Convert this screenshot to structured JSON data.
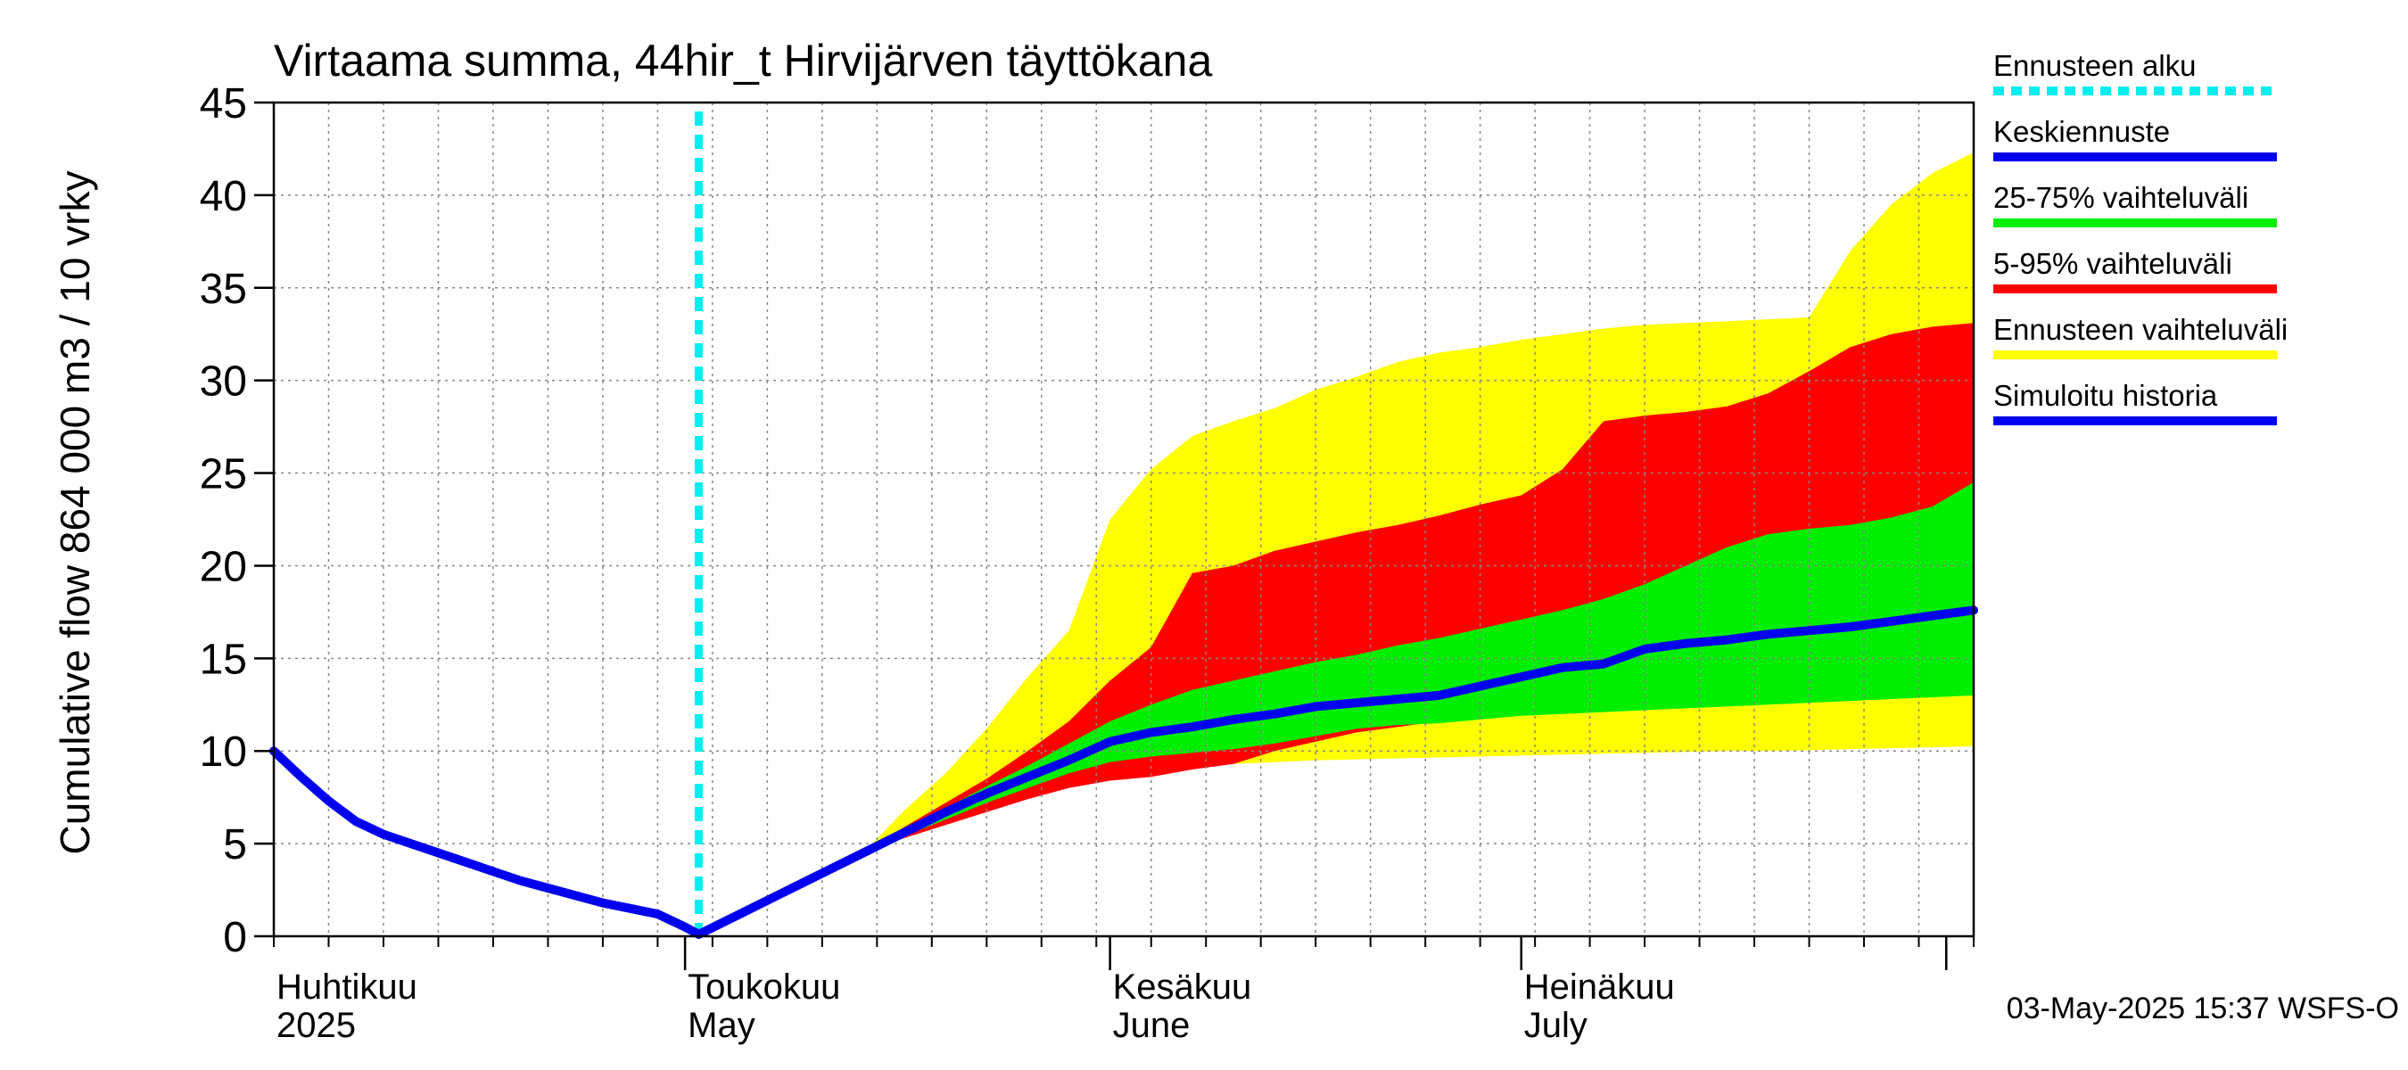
{
  "chart_data": {
    "type": "area",
    "title": "Virtaama summa, 44hir_t Hirvijärven täyttökana",
    "ylabel": "Cumulative flow    864 000 m3 / 10 vrky",
    "ylim": [
      0,
      45
    ],
    "yticks": [
      0,
      5,
      10,
      15,
      20,
      25,
      30,
      35,
      40,
      45
    ],
    "x_start_day": -32,
    "x_end_day": 92,
    "forecast_start_day": -1,
    "month_labels": [
      {
        "day": -32,
        "fi": "Huhtikuu",
        "en": "2025"
      },
      {
        "day": -2,
        "fi": "Toukokuu",
        "en": "May"
      },
      {
        "day": 29,
        "fi": "Kesäkuu",
        "en": "June"
      },
      {
        "day": 59,
        "fi": "Heinäkuu",
        "en": "July"
      }
    ],
    "month_boundaries": [
      -2,
      29,
      59,
      90
    ],
    "history": {
      "x": [
        -32,
        -30,
        -28,
        -26,
        -24,
        -22,
        -20,
        -18,
        -16,
        -14,
        -12,
        -10,
        -8,
        -6,
        -4,
        -2,
        -1
      ],
      "y": [
        10.0,
        8.6,
        7.3,
        6.2,
        5.5,
        5.0,
        4.5,
        4.0,
        3.5,
        3.0,
        2.6,
        2.2,
        1.8,
        1.5,
        1.2,
        0.5,
        0.1
      ]
    },
    "median": {
      "x": [
        -1,
        2,
        5,
        8,
        11,
        14,
        17,
        20,
        23,
        26,
        29,
        32,
        35,
        38,
        41,
        44,
        47,
        50,
        53,
        56,
        59,
        62,
        65,
        68,
        71,
        74,
        77,
        80,
        83,
        86,
        89,
        92
      ],
      "y": [
        0.1,
        1.2,
        2.3,
        3.4,
        4.5,
        5.6,
        6.7,
        7.7,
        8.6,
        9.5,
        10.5,
        11.0,
        11.3,
        11.7,
        12.0,
        12.4,
        12.6,
        12.8,
        13.0,
        13.5,
        14.0,
        14.5,
        14.7,
        15.5,
        15.8,
        16.0,
        16.3,
        16.5,
        16.7,
        17.0,
        17.3,
        17.6
      ]
    },
    "bands": [
      {
        "name": "Ennusteen vaihteluväli",
        "color": "#ffff00",
        "x": [
          -1,
          2,
          5,
          8,
          11,
          14,
          17,
          20,
          23,
          26,
          29,
          32,
          35,
          38,
          41,
          44,
          47,
          50,
          53,
          56,
          59,
          62,
          65,
          68,
          71,
          74,
          77,
          80,
          83,
          86,
          89,
          92
        ],
        "low": [
          0.1,
          1.2,
          2.3,
          3.4,
          4.5,
          5.4,
          6.2,
          7.0,
          7.9,
          8.6,
          8.9,
          9.1,
          9.2,
          9.3,
          9.4,
          9.5,
          9.55,
          9.6,
          9.65,
          9.7,
          9.75,
          9.8,
          9.85,
          9.9,
          9.95,
          10.0,
          10.0,
          10.05,
          10.1,
          10.15,
          10.2,
          10.25
        ],
        "high": [
          0.1,
          1.2,
          2.3,
          3.4,
          4.5,
          6.8,
          8.8,
          11.2,
          14.0,
          16.5,
          22.5,
          25.2,
          27.0,
          27.8,
          28.5,
          29.5,
          30.2,
          31.0,
          31.5,
          31.8,
          32.2,
          32.5,
          32.8,
          33.0,
          33.1,
          33.2,
          33.3,
          33.4,
          37.0,
          39.5,
          41.2,
          42.3
        ]
      },
      {
        "name": "5-95% vaihteluväli",
        "color": "#ff0000",
        "x": [
          -1,
          2,
          5,
          8,
          11,
          14,
          17,
          20,
          23,
          26,
          29,
          32,
          35,
          38,
          41,
          44,
          47,
          50,
          53,
          56,
          59,
          62,
          65,
          68,
          71,
          74,
          77,
          80,
          83,
          86,
          89,
          92
        ],
        "low": [
          0.1,
          1.2,
          2.3,
          3.4,
          4.5,
          5.3,
          6.0,
          6.7,
          7.4,
          8.0,
          8.4,
          8.6,
          9.0,
          9.3,
          10.0,
          10.5,
          11.0,
          11.3,
          11.6,
          11.8,
          12.0,
          12.2,
          12.3,
          12.5,
          12.8,
          13.0,
          13.2,
          13.3,
          13.4,
          13.6,
          13.8,
          14.2
        ],
        "high": [
          0.1,
          1.2,
          2.3,
          3.4,
          4.5,
          5.9,
          7.2,
          8.5,
          10.0,
          11.6,
          13.8,
          15.6,
          19.6,
          20.0,
          20.8,
          21.3,
          21.8,
          22.2,
          22.7,
          23.3,
          23.8,
          25.2,
          27.8,
          28.1,
          28.3,
          28.6,
          29.3,
          30.5,
          31.8,
          32.5,
          32.9,
          33.1
        ]
      },
      {
        "name": "25-75% vaihteluväli",
        "color": "#00ee00",
        "x": [
          -1,
          2,
          5,
          8,
          11,
          14,
          17,
          20,
          23,
          26,
          29,
          32,
          35,
          38,
          41,
          44,
          47,
          50,
          53,
          56,
          59,
          62,
          65,
          68,
          71,
          74,
          77,
          80,
          83,
          86,
          89,
          92
        ],
        "low": [
          0.1,
          1.2,
          2.3,
          3.4,
          4.5,
          5.4,
          6.3,
          7.2,
          8.0,
          8.8,
          9.4,
          9.7,
          9.9,
          10.1,
          10.4,
          10.8,
          11.2,
          11.4,
          11.5,
          11.7,
          11.9,
          12.0,
          12.1,
          12.2,
          12.3,
          12.4,
          12.5,
          12.6,
          12.7,
          12.8,
          12.9,
          13.0
        ],
        "high": [
          0.1,
          1.2,
          2.3,
          3.4,
          4.5,
          5.7,
          6.9,
          8.1,
          9.2,
          10.4,
          11.6,
          12.5,
          13.3,
          13.8,
          14.3,
          14.8,
          15.2,
          15.7,
          16.1,
          16.6,
          17.1,
          17.6,
          18.2,
          19.0,
          20.0,
          21.0,
          21.7,
          22.0,
          22.2,
          22.6,
          23.2,
          24.5
        ]
      }
    ],
    "legend": [
      {
        "label": "Ennusteen alku",
        "color": "#00eeee",
        "style": "dashed"
      },
      {
        "label": "Keskiennuste",
        "color": "#0000ee",
        "style": "solid"
      },
      {
        "label": "25-75% vaihteluväli",
        "color": "#00ee00",
        "style": "solid"
      },
      {
        "label": "5-95% vaihteluväli",
        "color": "#ff0000",
        "style": "solid"
      },
      {
        "label": "Ennusteen vaihteluväli",
        "color": "#ffff00",
        "style": "solid"
      },
      {
        "label": "Simuloitu historia",
        "color": "#0000ee",
        "style": "solid"
      }
    ],
    "timestamp": "03-May-2025 15:37 WSFS-O"
  }
}
